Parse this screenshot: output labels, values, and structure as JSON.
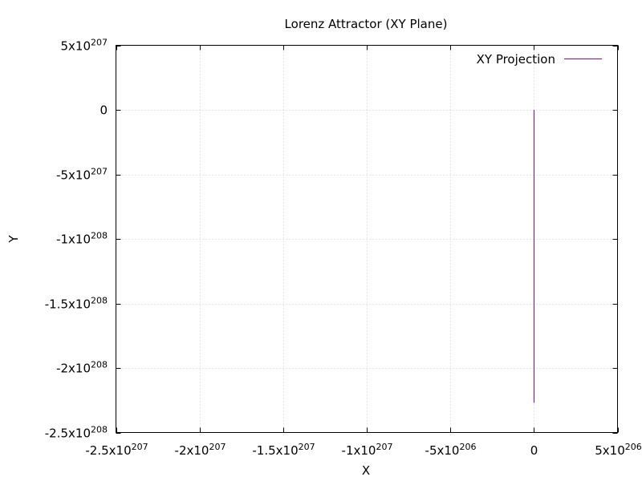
{
  "chart_data": {
    "type": "line",
    "title": "Lorenz Attractor (XY Plane)",
    "xlabel": "X",
    "ylabel": "Y",
    "xlim": [
      -2.5e+207,
      5e+206
    ],
    "ylim": [
      -2.5e+208,
      5e+207
    ],
    "grid": true,
    "legend_position": "top-right",
    "x_ticks": [
      {
        "value": -2.5e+207,
        "mantissa": "-2.5x10",
        "exponent": "207"
      },
      {
        "value": -2e+207,
        "mantissa": "-2x10",
        "exponent": "207"
      },
      {
        "value": -1.5e+207,
        "mantissa": "-1.5x10",
        "exponent": "207"
      },
      {
        "value": -1e+207,
        "mantissa": "-1x10",
        "exponent": "207"
      },
      {
        "value": -5e+206,
        "mantissa": "-5x10",
        "exponent": "206"
      },
      {
        "value": 0,
        "mantissa": "0",
        "exponent": ""
      },
      {
        "value": 5e+206,
        "mantissa": "5x10",
        "exponent": "206"
      }
    ],
    "y_ticks": [
      {
        "value": 5e+207,
        "mantissa": "5x10",
        "exponent": "207"
      },
      {
        "value": 0,
        "mantissa": "0",
        "exponent": ""
      },
      {
        "value": -5e+207,
        "mantissa": "-5x10",
        "exponent": "207"
      },
      {
        "value": -1e+208,
        "mantissa": "-1x10",
        "exponent": "208"
      },
      {
        "value": -1.5e+208,
        "mantissa": "-1.5x10",
        "exponent": "208"
      },
      {
        "value": -2e+208,
        "mantissa": "-2x10",
        "exponent": "208"
      },
      {
        "value": -2.5e+208,
        "mantissa": "-2.5x10",
        "exponent": "208"
      }
    ],
    "series": [
      {
        "name": "XY Projection",
        "color": "#9400d3",
        "x": [
          0,
          0
        ],
        "y": [
          0,
          -2.27e+208
        ]
      }
    ]
  }
}
